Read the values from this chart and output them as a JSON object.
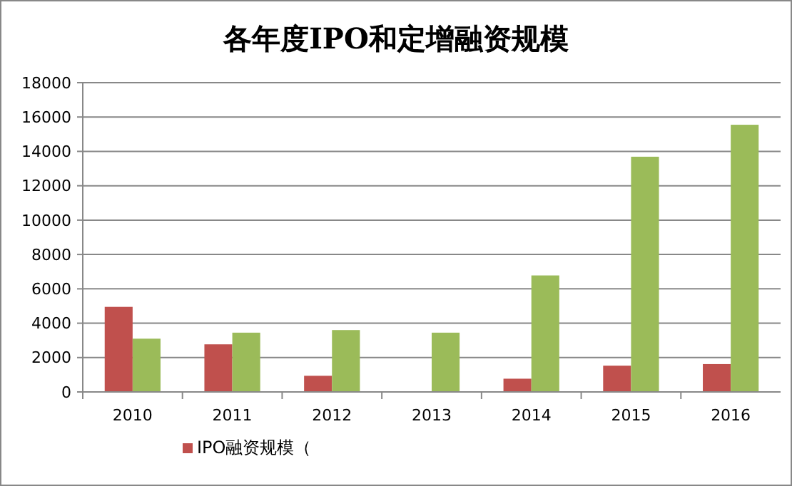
{
  "chart_data": {
    "type": "bar",
    "title": "各年度IPO和定增融资规模",
    "categories": [
      "2010",
      "2011",
      "2012",
      "2013",
      "2014",
      "2015",
      "2016"
    ],
    "series": [
      {
        "name": "IPO融资规模（",
        "color": "#c0504d",
        "values": [
          4950,
          2770,
          940,
          0,
          770,
          1530,
          1620
        ]
      },
      {
        "color": "#9bbb59",
        "values": [
          3100,
          3450,
          3600,
          3450,
          6780,
          13690,
          15550
        ]
      }
    ],
    "ylim": [
      0,
      18000
    ],
    "yticks": [
      0,
      2000,
      4000,
      6000,
      8000,
      10000,
      12000,
      14000,
      16000,
      18000
    ],
    "grid": "y",
    "legend": "bottom"
  }
}
